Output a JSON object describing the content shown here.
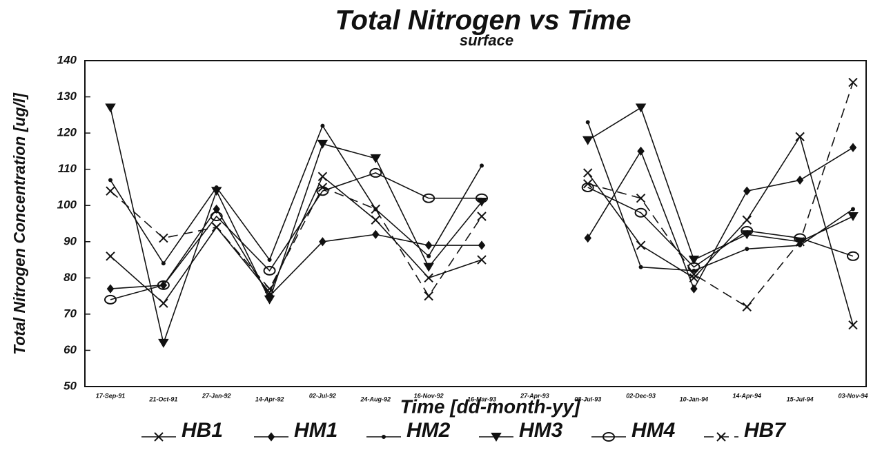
{
  "chart_data": {
    "type": "line",
    "title": "Total Nitrogen vs Time",
    "subtitle": "surface",
    "y_label": "Total Nitrogen Concentration [ug/l]",
    "x_label": "Time [dd-month-yy]",
    "categories": [
      "17-Sep-91",
      "21-Oct-91",
      "27-Jan-92",
      "14-Apr-92",
      "02-Jul-92",
      "24-Aug-92",
      "16-Nov-92",
      "16-Mar-93",
      "27-Apr-93",
      "08-Jul-93",
      "02-Dec-93",
      "10-Jan-94",
      "14-Apr-94",
      "15-Jul-94",
      "03-Nov-94"
    ],
    "ylim": [
      50,
      140
    ],
    "yticks": [
      50,
      60,
      70,
      80,
      90,
      100,
      110,
      120,
      130,
      140
    ],
    "series": [
      {
        "name": "HB1",
        "color": "#111111",
        "marker": "x",
        "dash": "none",
        "values": [
          86,
          73,
          94,
          76,
          108,
          96,
          80,
          85,
          null,
          109,
          89,
          80,
          96,
          119,
          67
        ]
      },
      {
        "name": "HM1",
        "color": "#111111",
        "marker": "diamond",
        "dash": "none",
        "values": [
          77,
          78,
          99,
          75,
          90,
          92,
          89,
          89,
          null,
          91,
          115,
          77,
          104,
          107,
          116
        ]
      },
      {
        "name": "HM2",
        "color": "#111111",
        "marker": "dot",
        "dash": "none",
        "values": [
          107,
          84,
          105,
          85,
          122,
          99,
          86,
          111,
          null,
          123,
          83,
          82,
          88,
          89,
          99
        ]
      },
      {
        "name": "HM3",
        "color": "#111111",
        "marker": "triangle",
        "dash": "none",
        "values": [
          127,
          62,
          104,
          74,
          117,
          113,
          83,
          101,
          null,
          118,
          127,
          85,
          92,
          90,
          97
        ]
      },
      {
        "name": "HM4",
        "color": "#111111",
        "marker": "circle",
        "dash": "none",
        "values": [
          74,
          78,
          97,
          82,
          104,
          109,
          102,
          102,
          null,
          105,
          98,
          83,
          93,
          91,
          86
        ]
      },
      {
        "name": "HB7",
        "color": "#111111",
        "marker": "x",
        "dash": "14,8",
        "values": [
          104,
          91,
          94,
          77,
          105,
          99,
          75,
          97,
          null,
          106,
          102,
          81,
          72,
          90,
          134
        ]
      }
    ]
  }
}
